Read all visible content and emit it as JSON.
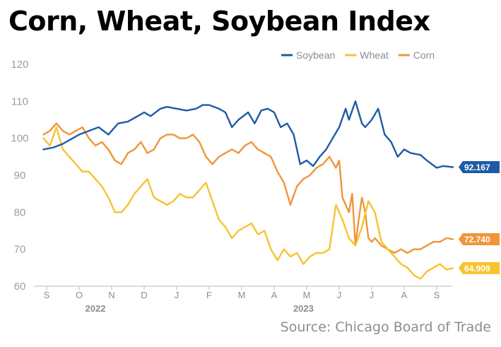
{
  "title": "Corn, Wheat, Soybean Index",
  "source": "Source: Chicago Board of Trade",
  "chart_data": {
    "type": "line",
    "title": "Corn, Wheat, Soybean Index",
    "xlabel": "",
    "ylabel": "",
    "ylim": [
      60,
      120
    ],
    "yticks": [
      60,
      70,
      80,
      90,
      100,
      110,
      120
    ],
    "x_range": [
      0,
      12.7
    ],
    "x_month_labels": [
      "S",
      "O",
      "N",
      "D",
      "J",
      "F",
      "M",
      "A",
      "M",
      "J",
      "J",
      "A",
      "S"
    ],
    "x_year_labels": [
      {
        "label": "2022",
        "x": 1.5
      },
      {
        "label": "2023",
        "x": 7.9
      }
    ],
    "grid": false,
    "legend": "top-right",
    "series": [
      {
        "name": "Soybean",
        "color": "#1f5aa6",
        "end_label": "92.167",
        "x": [
          -0.1,
          0.2,
          0.5,
          0.8,
          1.0,
          1.3,
          1.6,
          1.9,
          2.2,
          2.5,
          2.8,
          3.0,
          3.2,
          3.5,
          3.7,
          4.0,
          4.3,
          4.6,
          4.8,
          5.0,
          5.3,
          5.5,
          5.7,
          5.9,
          6.2,
          6.4,
          6.6,
          6.8,
          7.0,
          7.2,
          7.4,
          7.6,
          7.8,
          8.0,
          8.2,
          8.4,
          8.6,
          8.8,
          9.0,
          9.2,
          9.3,
          9.5,
          9.7,
          9.8,
          10.0,
          10.2,
          10.4,
          10.6,
          10.8,
          11.0,
          11.2,
          11.5,
          11.7,
          12.0,
          12.2,
          12.5
        ],
        "values": [
          97,
          97.5,
          98.5,
          100,
          101,
          102,
          103,
          101,
          104,
          104.5,
          106,
          107,
          106,
          108,
          108.5,
          108,
          107.5,
          108,
          109,
          109,
          108,
          107,
          103,
          105,
          107,
          104,
          107.5,
          108,
          107,
          103,
          104,
          101,
          93,
          94,
          92.5,
          95,
          97,
          100,
          103,
          108,
          105,
          110,
          104,
          103,
          105,
          108,
          101,
          99,
          95,
          97,
          96,
          95.5,
          94,
          92,
          92.5,
          92.2
        ]
      },
      {
        "name": "Wheat",
        "color": "#f7c32e",
        "end_label": "64.909",
        "x": [
          -0.1,
          0.1,
          0.3,
          0.5,
          0.7,
          0.9,
          1.1,
          1.3,
          1.5,
          1.7,
          1.9,
          2.1,
          2.3,
          2.5,
          2.7,
          2.9,
          3.1,
          3.3,
          3.5,
          3.7,
          3.9,
          4.1,
          4.3,
          4.5,
          4.7,
          4.9,
          5.1,
          5.3,
          5.5,
          5.7,
          5.9,
          6.1,
          6.3,
          6.5,
          6.7,
          6.9,
          7.1,
          7.3,
          7.5,
          7.7,
          7.9,
          8.1,
          8.3,
          8.5,
          8.7,
          8.9,
          9.1,
          9.3,
          9.5,
          9.7,
          9.9,
          10.1,
          10.3,
          10.5,
          10.7,
          10.9,
          11.1,
          11.3,
          11.5,
          11.7,
          11.9,
          12.1,
          12.3,
          12.5
        ],
        "values": [
          100,
          98,
          103,
          97,
          95,
          93,
          91,
          91,
          89,
          87,
          84,
          80,
          80,
          82,
          85,
          87,
          89,
          84,
          83,
          82,
          83,
          85,
          84,
          84,
          86,
          88,
          83,
          78,
          76,
          73,
          75,
          76,
          77,
          74,
          75,
          70,
          67,
          70,
          68,
          69,
          66,
          68,
          69,
          69,
          70,
          82,
          78,
          73,
          71,
          76,
          83,
          80,
          72,
          70,
          68,
          66,
          65,
          63,
          62,
          64,
          65,
          66,
          64.5,
          64.9
        ]
      },
      {
        "name": "Corn",
        "color": "#f0953a",
        "end_label": "72.740",
        "x": [
          -0.1,
          0.1,
          0.3,
          0.5,
          0.7,
          0.9,
          1.1,
          1.3,
          1.5,
          1.7,
          1.9,
          2.1,
          2.3,
          2.5,
          2.7,
          2.9,
          3.1,
          3.3,
          3.5,
          3.7,
          3.9,
          4.1,
          4.3,
          4.5,
          4.7,
          4.9,
          5.1,
          5.3,
          5.5,
          5.7,
          5.9,
          6.1,
          6.3,
          6.5,
          6.7,
          6.9,
          7.1,
          7.3,
          7.5,
          7.7,
          7.9,
          8.1,
          8.3,
          8.5,
          8.7,
          8.9,
          9.0,
          9.1,
          9.2,
          9.3,
          9.4,
          9.5,
          9.6,
          9.7,
          9.8,
          9.9,
          10.0,
          10.1,
          10.3,
          10.5,
          10.7,
          10.9,
          11.1,
          11.3,
          11.5,
          11.7,
          11.9,
          12.1,
          12.3,
          12.5
        ],
        "values": [
          101,
          102,
          104,
          102,
          101,
          102,
          103,
          100,
          98,
          99,
          97,
          94,
          93,
          96,
          97,
          99,
          96,
          97,
          100,
          101,
          101,
          100,
          100,
          101,
          99,
          95,
          93,
          95,
          96,
          97,
          96,
          98,
          99,
          97,
          96,
          95,
          91,
          88,
          82,
          87,
          89,
          90,
          92,
          93,
          95,
          92,
          94,
          84,
          82,
          80,
          85,
          71,
          78,
          84,
          80,
          73,
          72,
          73,
          71,
          70,
          69,
          70,
          69,
          70,
          70,
          71,
          72,
          72,
          73,
          72.7
        ]
      }
    ]
  }
}
